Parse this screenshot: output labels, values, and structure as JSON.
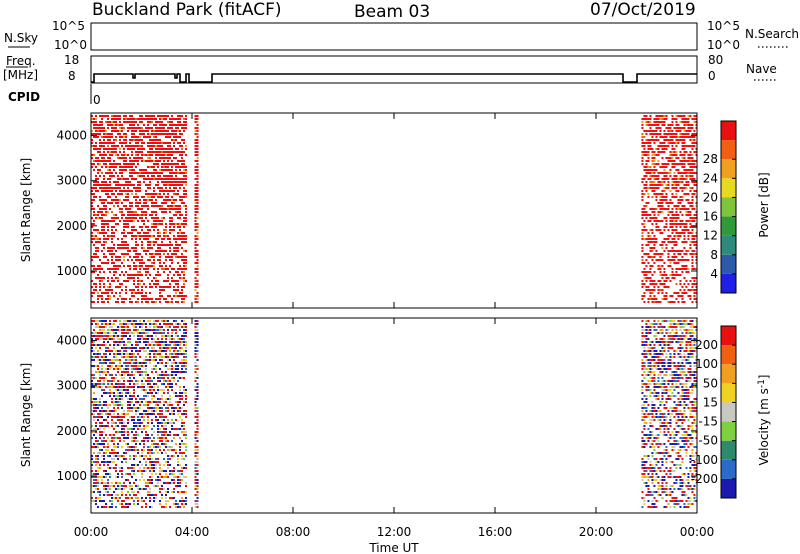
{
  "header": {
    "station": "Buckland Park (fitACF)",
    "beam": "Beam 03",
    "date": "07/Oct/2019"
  },
  "top_panels": {
    "nsky": {
      "label": "N.Sky",
      "left_ticks": [
        "10^5",
        "10^0"
      ],
      "right_ticks": [
        "10^5",
        "10^0"
      ],
      "right_label": "N.Search"
    },
    "freq": {
      "label_line1": "Freq.",
      "label_line2": "[MHz]",
      "left_ticks": [
        "18",
        "8"
      ],
      "right_ticks": [
        "80",
        "0"
      ],
      "right_label": "Nave"
    },
    "cpid": {
      "label": "CPID",
      "value": "0"
    }
  },
  "chart_data": [
    {
      "type": "heatmap",
      "name": "power",
      "ylabel": "Slant Range [km]",
      "yticks": [
        1000,
        2000,
        3000,
        4000
      ],
      "yticklabels": [
        "1000",
        "2000",
        "3000",
        "4000"
      ],
      "ylim": [
        180,
        4500
      ],
      "xlim_hours": [
        0,
        24
      ],
      "colorbar": {
        "label": "Power [dB]",
        "tick_labels": [
          "4",
          "8",
          "12",
          "16",
          "20",
          "24",
          "28"
        ],
        "colors": [
          "#1f1fe6",
          "#2a5aa8",
          "#2e8a7c",
          "#2f9a3a",
          "#7fc43a",
          "#e8d820",
          "#f0a020",
          "#f06010",
          "#e81010"
        ]
      },
      "data_segments_hours": [
        [
          0.0,
          3.75
        ],
        [
          4.1,
          4.25
        ],
        [
          21.8,
          24.0
        ]
      ],
      "dominant_value_db": 28
    },
    {
      "type": "heatmap",
      "name": "velocity",
      "ylabel": "Slant Range [km]",
      "xlabel": "Time UT",
      "yticks": [
        1000,
        2000,
        3000,
        4000
      ],
      "yticklabels": [
        "1000",
        "2000",
        "3000",
        "4000"
      ],
      "ylim": [
        180,
        4500
      ],
      "xlim_hours": [
        0,
        24
      ],
      "xtick_labels": [
        "00:00",
        "04:00",
        "08:00",
        "12:00",
        "16:00",
        "20:00",
        "00:00"
      ],
      "colorbar": {
        "label": "Velocity [m s^-1]",
        "tick_labels": [
          "200",
          "100",
          "50",
          "15",
          "-15",
          "-50",
          "-100",
          "-200"
        ],
        "colors": [
          "#1a1ab0",
          "#2a6ac8",
          "#2e8a6a",
          "#7ed040",
          "#c8c8c0",
          "#f0d020",
          "#f0a020",
          "#f06010",
          "#e81010"
        ]
      },
      "data_segments_hours": [
        [
          0.0,
          3.75
        ],
        [
          4.1,
          4.25
        ],
        [
          21.8,
          24.0
        ]
      ]
    }
  ]
}
